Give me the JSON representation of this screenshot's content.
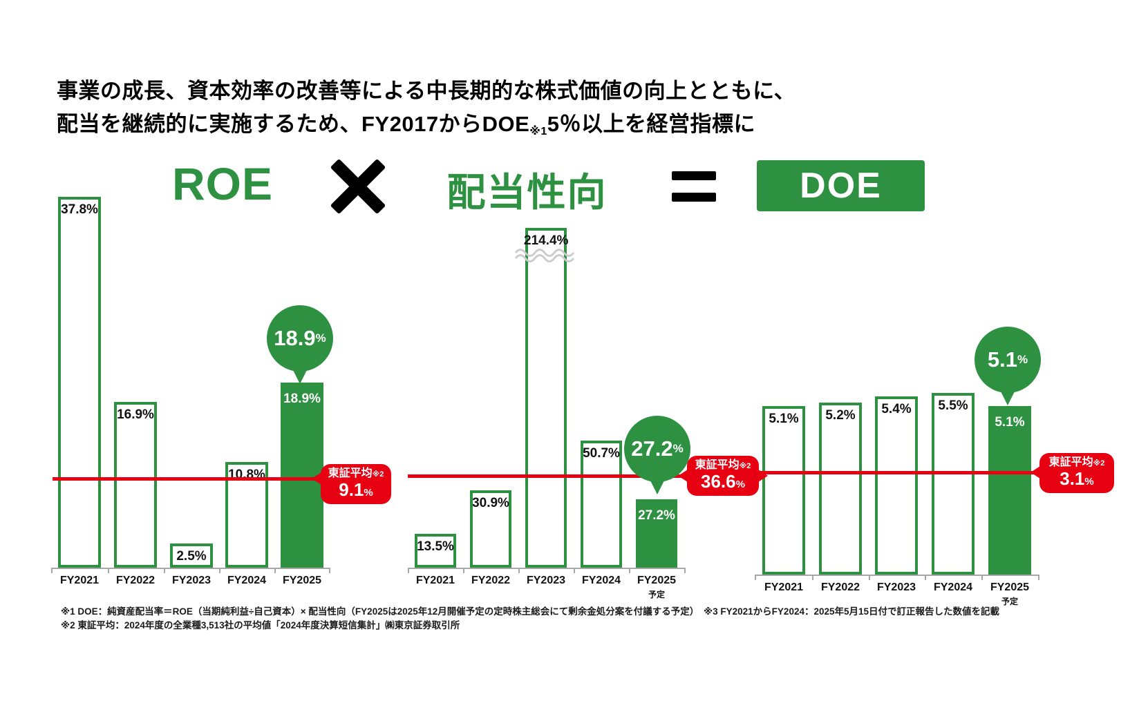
{
  "title": {
    "line1": "事業の成長、資本効率の改善等による中長期的な株式価値の向上とともに、",
    "line2_before_note": "配当を継続的に実施するため、FY2017からDOE",
    "line2_note": "※1",
    "line2_after_note": "5％以上を経営指標に"
  },
  "formula": {
    "roe": "ROE",
    "payout": "配当性向",
    "doe": "DOE"
  },
  "colors": {
    "green": "#2e9142",
    "red": "#e60012"
  },
  "chart_data": [
    {
      "type": "bar",
      "id": "roe",
      "title": "ROE",
      "categories": [
        "FY2021",
        "FY2022",
        "FY2023",
        "FY2024",
        "FY2025"
      ],
      "category_sub_labels": [
        "",
        "",
        "",
        "",
        ""
      ],
      "values": [
        37.8,
        16.9,
        2.5,
        10.8,
        18.9
      ],
      "value_labels": [
        "37.8%",
        "16.9%",
        "2.5%",
        "10.8%",
        "18.9%"
      ],
      "highlight_index": 4,
      "balloon": {
        "value": "18.9",
        "unit": "%"
      },
      "benchmark": {
        "label": "東証平均",
        "label_note": "※2",
        "value": 9.1,
        "display": "9.1",
        "unit": "%"
      },
      "ylim": [
        0,
        40
      ],
      "grid": false,
      "legend": false
    },
    {
      "type": "bar",
      "id": "payout-ratio",
      "title": "配当性向",
      "categories": [
        "FY2021",
        "FY2022",
        "FY2023",
        "FY2024",
        "FY2025"
      ],
      "category_sub_labels": [
        "",
        "",
        "",
        "",
        "予定"
      ],
      "values": [
        13.5,
        30.9,
        214.4,
        50.7,
        27.2
      ],
      "value_labels": [
        "13.5%",
        "30.9%",
        "214.4%",
        "50.7%",
        "27.2%"
      ],
      "highlight_index": 4,
      "clip_index": 2,
      "balloon": {
        "value": "27.2",
        "unit": "%"
      },
      "benchmark": {
        "label": "東証平均",
        "label_note": "※2",
        "value": 36.6,
        "display": "36.6",
        "unit": "%"
      },
      "ylim": [
        0,
        135
      ],
      "grid": false,
      "legend": false
    },
    {
      "type": "bar",
      "id": "doe",
      "title": "DOE",
      "categories": [
        "FY2021",
        "FY2022",
        "FY2023",
        "FY2024",
        "FY2025"
      ],
      "category_sub_labels": [
        "",
        "",
        "",
        "",
        "予定"
      ],
      "values": [
        5.1,
        5.2,
        5.4,
        5.5,
        5.1
      ],
      "value_labels": [
        "5.1%",
        "5.2%",
        "5.4%",
        "5.5%",
        "5.1%"
      ],
      "highlight_index": 4,
      "balloon": {
        "value": "5.1",
        "unit": "%"
      },
      "benchmark": {
        "label": "東証平均",
        "label_note": "※2",
        "value": 3.1,
        "display": "3.1",
        "unit": "%"
      },
      "ylim": [
        0,
        7.5
      ],
      "grid": false,
      "legend": false
    }
  ],
  "footnotes": [
    "※1 DOE：純資産配当率＝ROE（当期純利益÷自己資本）× 配当性向（FY2025は2025年12月開催予定の定時株主総会にて剰余金処分案を付議する予定）　※3 FY2021からFY2024：2025年5月15日付で訂正報告した数値を記載",
    "※2 東証平均：2024年度の全業種3,513社の平均値「2024年度決算短信集計」㈱東京証券取引所"
  ]
}
